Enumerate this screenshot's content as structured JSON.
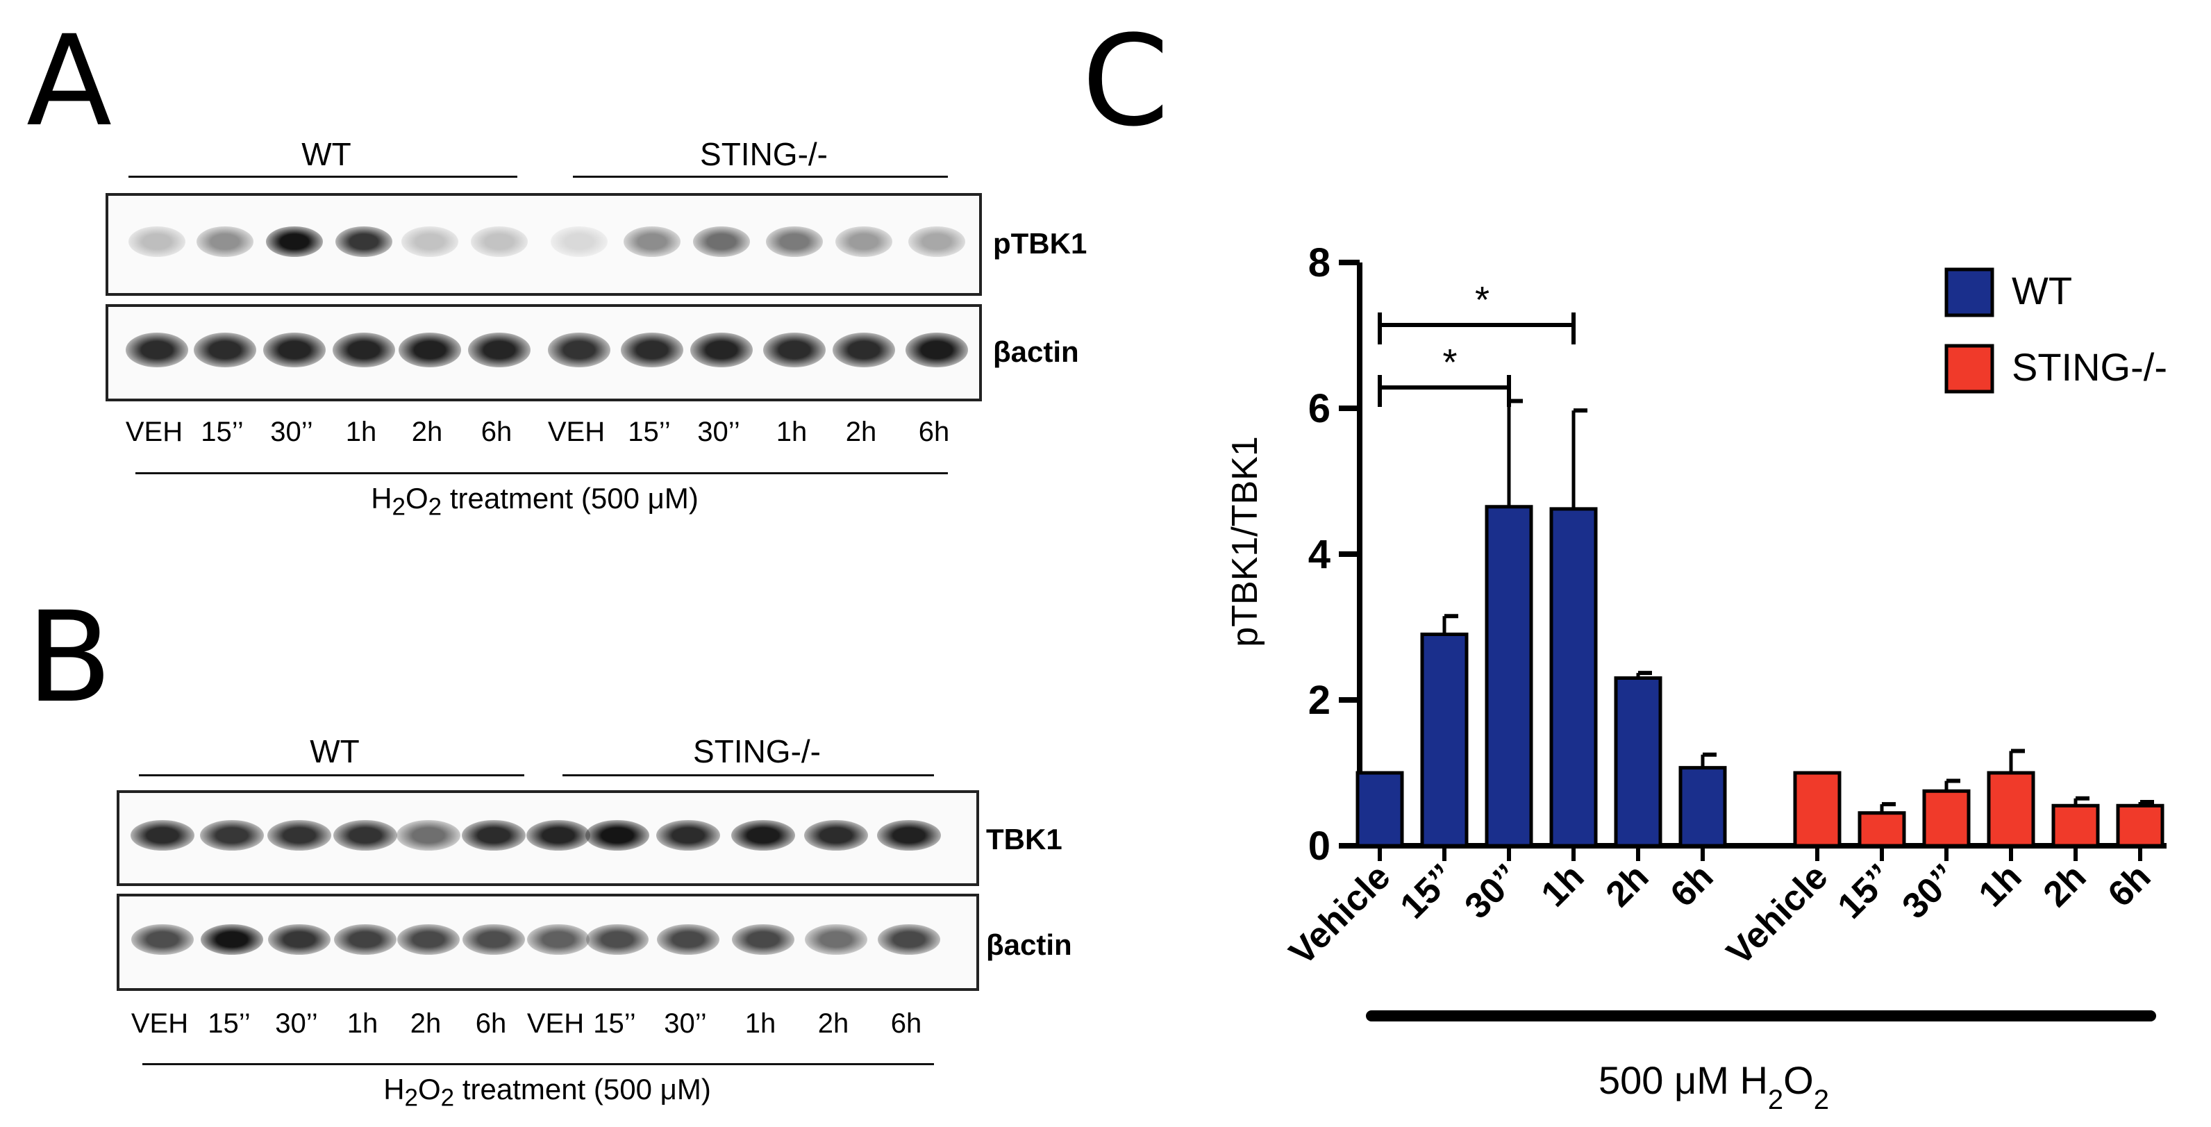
{
  "panels": {
    "A": {
      "letter": "A",
      "groups": [
        "WT",
        "STING-/-"
      ],
      "lanes": [
        "VEH",
        "15’’",
        "30’’",
        "1h",
        "2h",
        "6h",
        "VEH",
        "15’’",
        "30’’",
        "1h",
        "2h",
        "6h"
      ],
      "blots": [
        {
          "label": "pTBK1",
          "intensity": [
            0.2,
            0.4,
            0.95,
            0.8,
            0.18,
            0.18,
            0.08,
            0.42,
            0.55,
            0.5,
            0.35,
            0.3
          ]
        },
        {
          "label": "βactin",
          "intensity": [
            0.85,
            0.85,
            0.88,
            0.88,
            0.9,
            0.88,
            0.82,
            0.85,
            0.88,
            0.85,
            0.85,
            0.92
          ]
        }
      ],
      "treatment": {
        "prefix": "H",
        "sub1": "2",
        "mid": "O",
        "sub2": "2",
        "suffix": " treatment (500 μM)"
      }
    },
    "B": {
      "letter": "B",
      "groups": [
        "WT",
        "STING-/-"
      ],
      "lanes": [
        "VEH",
        "15’’",
        "30’’",
        "1h",
        "2h",
        "6h",
        "VEH",
        "15’’",
        "30’’",
        "1h",
        "2h",
        "6h"
      ],
      "blots": [
        {
          "label": "TBK1",
          "intensity": [
            0.85,
            0.8,
            0.82,
            0.82,
            0.55,
            0.85,
            0.88,
            0.95,
            0.85,
            0.92,
            0.85,
            0.9
          ]
        },
        {
          "label": "βactin",
          "intensity": [
            0.7,
            0.95,
            0.8,
            0.75,
            0.72,
            0.7,
            0.62,
            0.7,
            0.72,
            0.72,
            0.55,
            0.72
          ]
        }
      ],
      "treatment": {
        "prefix": "H",
        "sub1": "2",
        "mid": "O",
        "sub2": "2",
        "suffix": " treatment (500 μM)"
      }
    },
    "C": {
      "letter": "C"
    }
  },
  "chart_data": {
    "type": "bar",
    "ylabel": "pTBK1/TBK1",
    "ylim": [
      0,
      8
    ],
    "yticks": [
      0,
      2,
      4,
      6,
      8
    ],
    "categories": [
      "Vehicle",
      "15’’",
      "30’’",
      "1h",
      "2h",
      "6h"
    ],
    "series": [
      {
        "name": "WT",
        "color": "#1a2f8c",
        "values": [
          1.0,
          2.9,
          4.65,
          4.62,
          2.3,
          1.07
        ],
        "errors": [
          0.0,
          0.25,
          1.45,
          1.35,
          0.07,
          0.18
        ]
      },
      {
        "name": "STING-/-",
        "color": "#f03a2a",
        "values": [
          1.0,
          0.45,
          0.75,
          1.0,
          0.55,
          0.55
        ],
        "errors": [
          0.0,
          0.12,
          0.14,
          0.3,
          0.1,
          0.05
        ]
      }
    ],
    "significance": [
      {
        "label": "*",
        "from": 0,
        "to": 3
      },
      {
        "label": "*",
        "from": 0,
        "to": 2
      }
    ],
    "xlabel": {
      "prefix": "500 μM H",
      "sub1": "2",
      "mid": "O",
      "sub2": "2"
    },
    "legend_position": "top-right"
  }
}
